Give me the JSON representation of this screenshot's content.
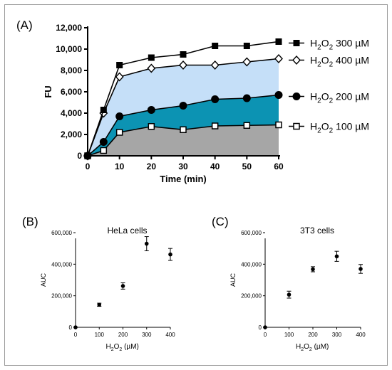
{
  "figure": {
    "panels": [
      {
        "id": "A",
        "label": "(A)"
      },
      {
        "id": "B",
        "label": "(B)"
      },
      {
        "id": "C",
        "label": "(C)"
      }
    ]
  },
  "colors": {
    "s300": "#000000",
    "fill400": "#c5dff8",
    "fill200": "#0c93b3",
    "fill100": "#a6a6a6",
    "marker_open": "#ffffff"
  },
  "chart_data": [
    {
      "panel": "A",
      "type": "area",
      "xlabel": "Time (min)",
      "ylabel": "FU",
      "x": [
        0,
        5,
        10,
        20,
        30,
        40,
        50,
        60
      ],
      "xticks": [
        0,
        10,
        20,
        30,
        40,
        50,
        60
      ],
      "yticks": [
        "0",
        "2,000",
        "4,000",
        "6,000",
        "8,000",
        "10,000",
        "12,000"
      ],
      "xlim": [
        0,
        60
      ],
      "ylim": [
        0,
        12000
      ],
      "grid": false,
      "legend_position": "right",
      "series": [
        {
          "name_main": "H",
          "name_sub": "2",
          "name_mid": "O",
          "name_sub2": "2",
          "name_rest": " 300 µM",
          "marker": "filled-square",
          "fill": "none",
          "values": [
            0,
            4300,
            8500,
            9200,
            9500,
            10300,
            10300,
            10700
          ]
        },
        {
          "name_main": "H",
          "name_sub": "2",
          "name_mid": "O",
          "name_sub2": "2",
          "name_rest": " 400 µM",
          "marker": "open-diamond",
          "fill": "light-blue",
          "values": [
            0,
            4000,
            7400,
            8200,
            8500,
            8500,
            8800,
            9100
          ]
        },
        {
          "name_main": "H",
          "name_sub": "2",
          "name_mid": "O",
          "name_sub2": "2",
          "name_rest": " 200 µM",
          "marker": "filled-circle",
          "fill": "teal",
          "values": [
            0,
            1300,
            3700,
            4300,
            4700,
            5300,
            5400,
            5700
          ]
        },
        {
          "name_main": "H",
          "name_sub": "2",
          "name_mid": "O",
          "name_sub2": "2",
          "name_rest": " 100 µM",
          "marker": "open-square",
          "fill": "grey",
          "values": [
            0,
            500,
            2200,
            2750,
            2450,
            2800,
            2850,
            2900
          ]
        }
      ]
    },
    {
      "panel": "B",
      "type": "scatter",
      "title": "HeLa cells",
      "xlabel_main": "H",
      "xlabel_sub": "2",
      "xlabel_mid": "O",
      "xlabel_sub2": "2",
      "xlabel_rest": " (µM)",
      "ylabel": "AUC",
      "x": [
        0,
        100,
        200,
        300,
        400
      ],
      "values": [
        0,
        143000,
        262000,
        530000,
        462000
      ],
      "errors": [
        0,
        10000,
        20000,
        45000,
        38000
      ],
      "xticks": [
        0,
        100,
        200,
        300,
        400
      ],
      "yticks": [
        "0",
        "200,000",
        "400,000",
        "600,000"
      ],
      "xlim": [
        0,
        400
      ],
      "ylim": [
        0,
        600000
      ]
    },
    {
      "panel": "C",
      "type": "scatter",
      "title": "3T3 cells",
      "xlabel_main": "H",
      "xlabel_sub": "2",
      "xlabel_mid": "O",
      "xlabel_sub2": "2",
      "xlabel_rest": " (µM)",
      "ylabel": "AUC",
      "x": [
        0,
        100,
        200,
        300,
        400
      ],
      "values": [
        0,
        207000,
        368000,
        450000,
        370000
      ],
      "errors": [
        0,
        22000,
        16000,
        32000,
        28000
      ],
      "xticks": [
        0,
        100,
        200,
        300,
        400
      ],
      "yticks": [
        "0",
        "200,000",
        "400,000",
        "600,000"
      ],
      "xlim": [
        0,
        400
      ],
      "ylim": [
        0,
        600000
      ]
    }
  ]
}
